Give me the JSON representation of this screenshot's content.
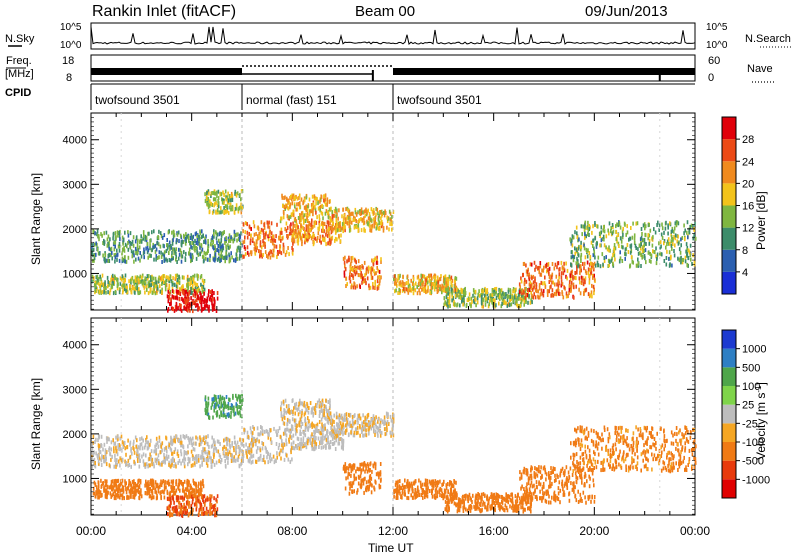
{
  "header": {
    "station": "Rankin Inlet (fitACF)",
    "beam": "Beam 00",
    "date": "09/Jun/2013"
  },
  "strip_labels": {
    "nsky": "N.Sky",
    "nsky_ticks": [
      "10^5",
      "10^0"
    ],
    "nsearch": "N.Search",
    "nsearch_ticks": [
      "10^5",
      "10^0"
    ],
    "freq_top": "Freq.",
    "freq_bottom": "[MHz]",
    "freq_ticks": [
      "18",
      "8"
    ],
    "nave": "Nave",
    "nave_ticks": [
      "60",
      "0"
    ],
    "cpid": "CPID"
  },
  "cpid_segments": [
    {
      "start": 0,
      "end": 6,
      "label": "twofsound 3501"
    },
    {
      "start": 6,
      "end": 12,
      "label": "normal (fast) 151"
    },
    {
      "start": 12,
      "end": 24,
      "label": "twofsound 3501"
    }
  ],
  "time_axis": {
    "label": "Time UT",
    "ticks": [
      "00:00",
      "04:00",
      "08:00",
      "12:00",
      "16:00",
      "20:00",
      "00:00"
    ],
    "range_hours": [
      0,
      24
    ]
  },
  "power_panel": {
    "ylabel": "Slant Range [km]",
    "yticks": [
      "1000",
      "2000",
      "3000",
      "4000"
    ],
    "colorbar_label": "Power [dB]",
    "colorbar_ticks": [
      "4",
      "8",
      "12",
      "16",
      "20",
      "24",
      "28"
    ],
    "colors": [
      "#1a2fd6",
      "#2b5fb0",
      "#3c8c6a",
      "#7fb640",
      "#f3c31b",
      "#f08a1e",
      "#ec4a16",
      "#e0000a"
    ]
  },
  "velocity_panel": {
    "ylabel": "Slant Range [km]",
    "yticks": [
      "1000",
      "2000",
      "3000",
      "4000"
    ],
    "colorbar_label": "Velocity [m s^-1]",
    "colorbar_ticks": [
      "1000",
      "500",
      "100",
      "25",
      "-25",
      "-100",
      "-500",
      "-1000"
    ],
    "colors": [
      "#1c3ad0",
      "#2e7fc4",
      "#4fa64a",
      "#7fd44a",
      "#bdbdbd",
      "#f5a623",
      "#f07a14",
      "#e83a0c",
      "#e00000"
    ]
  },
  "chart_data": {
    "type": "heatmap",
    "x_unit": "hours UT",
    "y_unit": "km",
    "ylim": [
      180,
      4600
    ],
    "xlim": [
      0,
      24
    ],
    "scatter_bands": [
      {
        "t0": 0.0,
        "t1": 6.0,
        "r0": 1300,
        "r1": 2000,
        "power": 10,
        "velocity": -10
      },
      {
        "t0": 0.0,
        "t1": 4.5,
        "r0": 600,
        "r1": 1000,
        "power": 14,
        "velocity": -200
      },
      {
        "t0": 3.0,
        "t1": 5.0,
        "r0": 200,
        "r1": 650,
        "power": 28,
        "velocity": -500
      },
      {
        "t0": 4.5,
        "t1": 6.0,
        "r0": 2400,
        "r1": 2900,
        "power": 14,
        "velocity": 80
      },
      {
        "t0": 6.0,
        "t1": 8.0,
        "r0": 1400,
        "r1": 2200,
        "power": 22,
        "velocity": -15
      },
      {
        "t0": 7.5,
        "t1": 9.5,
        "r0": 2200,
        "r1": 2800,
        "power": 18,
        "velocity": -20
      },
      {
        "t0": 8.0,
        "t1": 10.0,
        "r0": 1700,
        "r1": 2200,
        "power": 20,
        "velocity": -10
      },
      {
        "t0": 9.5,
        "t1": 12.0,
        "r0": 2000,
        "r1": 2500,
        "power": 18,
        "velocity": -15
      },
      {
        "t0": 10.0,
        "t1": 11.5,
        "r0": 700,
        "r1": 1400,
        "power": 22,
        "velocity": -300
      },
      {
        "t0": 12.0,
        "t1": 14.5,
        "r0": 600,
        "r1": 1000,
        "power": 18,
        "velocity": -200
      },
      {
        "t0": 14.0,
        "t1": 17.5,
        "r0": 300,
        "r1": 700,
        "power": 14,
        "velocity": -150
      },
      {
        "t0": 17.0,
        "t1": 20.0,
        "r0": 500,
        "r1": 1300,
        "power": 22,
        "velocity": -300
      },
      {
        "t0": 19.0,
        "t1": 24.0,
        "r0": 1200,
        "r1": 2200,
        "power": 12,
        "velocity": -120
      }
    ]
  }
}
